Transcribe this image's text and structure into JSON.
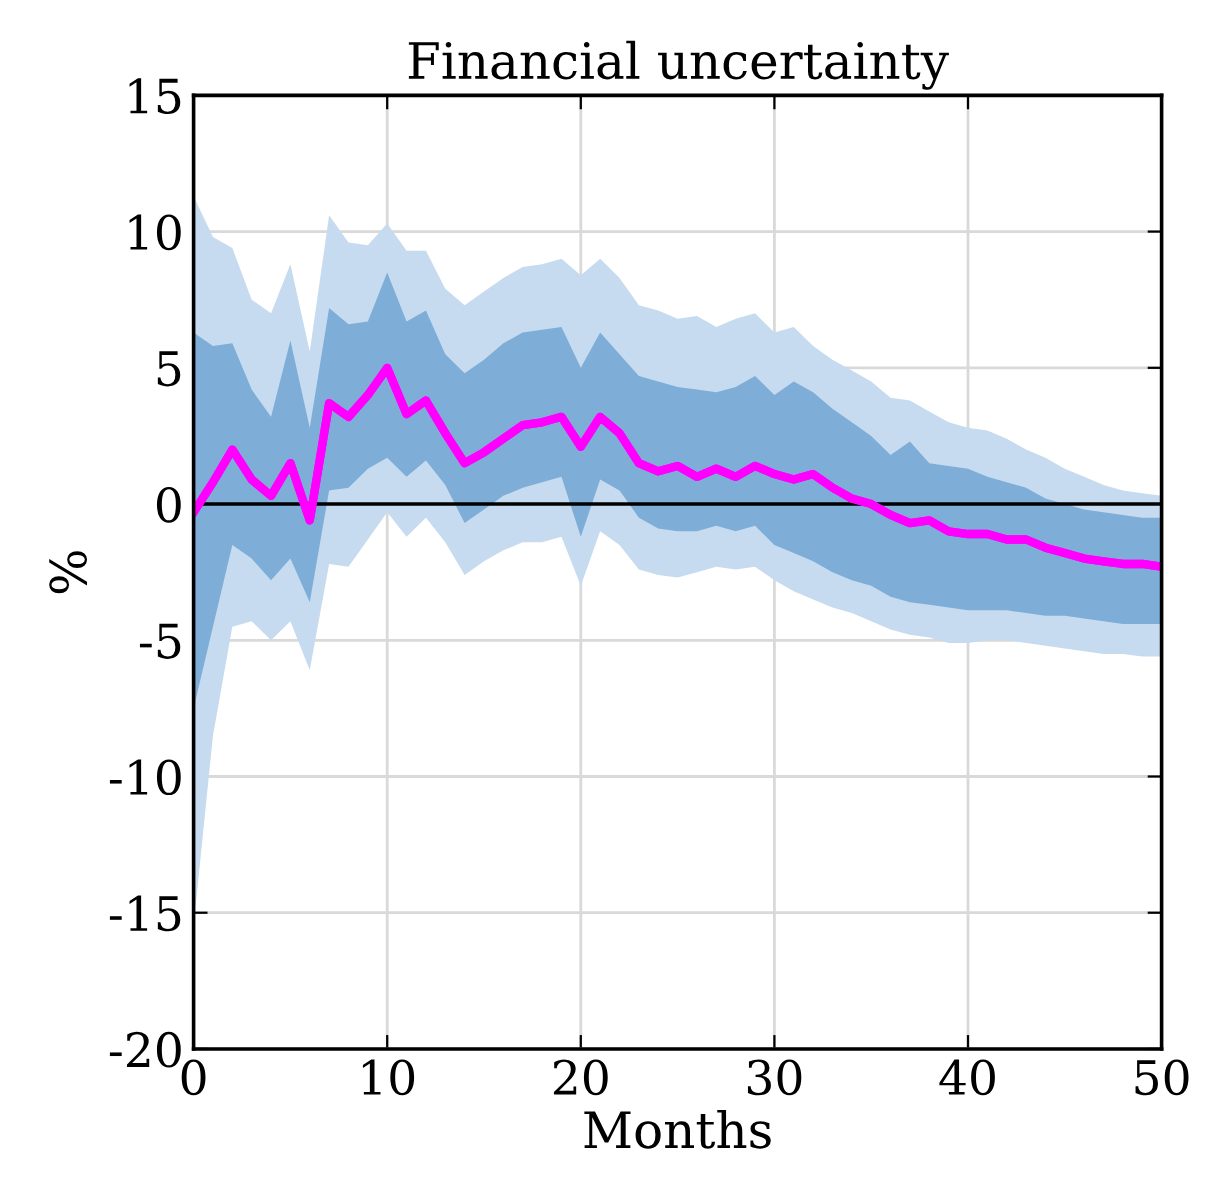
{
  "chart_data": {
    "type": "line",
    "title": "Financial uncertainty",
    "xlabel": "Months",
    "ylabel": "%",
    "x": [
      0,
      1,
      2,
      3,
      4,
      5,
      6,
      7,
      8,
      9,
      10,
      11,
      12,
      13,
      14,
      15,
      16,
      17,
      18,
      19,
      20,
      21,
      22,
      23,
      24,
      25,
      26,
      27,
      28,
      29,
      30,
      31,
      32,
      33,
      34,
      35,
      36,
      37,
      38,
      39,
      40,
      41,
      42,
      43,
      44,
      45,
      46,
      47,
      48,
      49,
      50
    ],
    "series": [
      {
        "color": "#ff00ff",
        "values": [
          -0.3,
          0.8,
          2.0,
          0.9,
          0.3,
          1.5,
          -0.6,
          3.7,
          3.2,
          4.0,
          5.0,
          3.3,
          3.8,
          2.6,
          1.5,
          1.9,
          2.4,
          2.9,
          3.0,
          3.2,
          2.1,
          3.2,
          2.6,
          1.5,
          1.2,
          1.4,
          1.0,
          1.3,
          1.0,
          1.4,
          1.1,
          0.9,
          1.1,
          0.6,
          0.2,
          0.0,
          -0.4,
          -0.7,
          -0.6,
          -1.0,
          -1.1,
          -1.1,
          -1.3,
          -1.3,
          -1.6,
          -1.8,
          -2.0,
          -2.1,
          -2.2,
          -2.2,
          -2.3
        ],
        "lower": [
          -15.5,
          -8.5,
          -4.5,
          -4.3,
          -5.0,
          -4.3,
          -6.1,
          -2.2,
          -2.3,
          -1.3,
          -0.3,
          -1.2,
          -0.5,
          -1.4,
          -2.6,
          -2.1,
          -1.7,
          -1.4,
          -1.4,
          -1.2,
          -3.0,
          -1.0,
          -1.5,
          -2.4,
          -2.6,
          -2.7,
          -2.5,
          -2.3,
          -2.4,
          -2.3,
          -2.8,
          -3.2,
          -3.5,
          -3.8,
          -4.0,
          -4.3,
          -4.6,
          -4.8,
          -4.9,
          -5.1,
          -5.1,
          -5.0,
          -5.0,
          -5.1,
          -5.2,
          -5.3,
          -5.4,
          -5.5,
          -5.5,
          -5.6,
          -5.6
        ],
        "upper": [
          11.3,
          9.8,
          9.4,
          7.5,
          7.0,
          8.8,
          5.6,
          10.6,
          9.6,
          9.5,
          10.3,
          9.3,
          9.3,
          7.9,
          7.3,
          7.8,
          8.3,
          8.7,
          8.8,
          9.0,
          8.4,
          9.0,
          8.3,
          7.3,
          7.1,
          6.8,
          6.9,
          6.5,
          6.8,
          7.0,
          6.3,
          6.5,
          5.8,
          5.3,
          4.9,
          4.5,
          3.9,
          3.8,
          3.4,
          3.0,
          2.8,
          2.7,
          2.4,
          2.0,
          1.7,
          1.3,
          1.0,
          0.7,
          0.5,
          0.4,
          0.3
        ]
      },
      {
        "color": "#ff00ff",
        "values": [
          -0.3,
          0.8,
          2.0,
          0.9,
          0.3,
          1.5,
          -0.6,
          3.7,
          3.2,
          4.0,
          5.0,
          3.3,
          3.8,
          2.6,
          1.5,
          1.9,
          2.4,
          2.9,
          3.0,
          3.2,
          2.1,
          3.2,
          2.6,
          1.5,
          1.2,
          1.4,
          1.0,
          1.3,
          1.0,
          1.4,
          1.1,
          0.9,
          1.1,
          0.6,
          0.2,
          0.0,
          -0.4,
          -0.7,
          -0.6,
          -1.0,
          -1.1,
          -1.1,
          -1.3,
          -1.3,
          -1.6,
          -1.8,
          -2.0,
          -2.1,
          -2.2,
          -2.2,
          -2.3
        ],
        "lower": [
          -7.5,
          -4.5,
          -1.5,
          -2.0,
          -2.8,
          -2.0,
          -3.6,
          0.5,
          0.6,
          1.3,
          1.7,
          1.0,
          1.6,
          0.7,
          -0.7,
          -0.2,
          0.3,
          0.6,
          0.8,
          1.0,
          -1.2,
          0.9,
          0.5,
          -0.5,
          -0.9,
          -1.0,
          -1.0,
          -0.8,
          -1.0,
          -0.8,
          -1.5,
          -1.8,
          -2.1,
          -2.5,
          -2.8,
          -3.0,
          -3.4,
          -3.6,
          -3.7,
          -3.8,
          -3.9,
          -3.9,
          -3.9,
          -4.0,
          -4.1,
          -4.1,
          -4.2,
          -4.3,
          -4.4,
          -4.4,
          -4.4
        ],
        "upper": [
          6.3,
          5.8,
          5.9,
          4.2,
          3.2,
          6.0,
          2.8,
          7.2,
          6.6,
          6.7,
          8.5,
          6.7,
          7.1,
          5.5,
          4.8,
          5.3,
          5.9,
          6.3,
          6.4,
          6.5,
          5.0,
          6.3,
          5.5,
          4.7,
          4.5,
          4.3,
          4.2,
          4.1,
          4.3,
          4.7,
          4.0,
          4.5,
          4.1,
          3.5,
          3.0,
          2.5,
          1.8,
          2.3,
          1.5,
          1.4,
          1.3,
          1.0,
          0.8,
          0.6,
          0.2,
          0.0,
          -0.2,
          -0.3,
          -0.4,
          -0.5,
          -0.5
        ]
      }
    ],
    "xlim": [
      0,
      50
    ],
    "xticks": [
      0,
      10,
      20,
      30,
      40,
      50
    ],
    "ylim": [
      -20,
      15
    ],
    "yticks": [
      -20,
      -15,
      -10,
      -5,
      0,
      5,
      10,
      15
    ],
    "ref_lines": [
      {
        "axis": "y",
        "value": 0,
        "color": "#000000",
        "line_style": "solid"
      }
    ],
    "grid": true,
    "marker": "none",
    "line_style": "solid",
    "legend": false
  }
}
